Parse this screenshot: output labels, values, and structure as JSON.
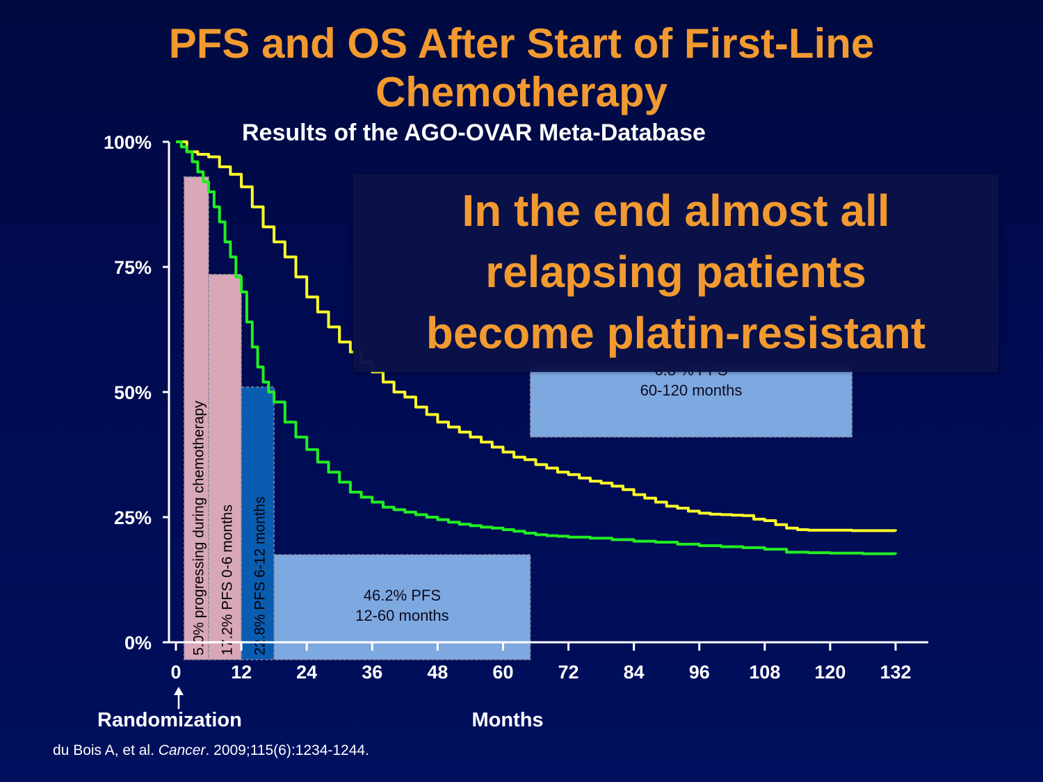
{
  "slide": {
    "title_line1": "PFS and OS After Start of First-Line",
    "title_line2": "Chemotherapy",
    "subtitle": "Results of the AGO-OVAR Meta-Database",
    "callout": [
      "In the end almost all",
      "relapsing patients",
      "become platin-resistant"
    ],
    "citation_authors": "du Bois A, et al. ",
    "citation_journal": "Cancer",
    "citation_rest": ". 2009;115(6):1234-1244."
  },
  "colors": {
    "os_curve": "#ffff2a",
    "pfs_curve": "#22ee22",
    "pink_bar": "#d8a8b8",
    "dark_blue_bar": "#0a5cb0",
    "light_blue_bar": "#7ea8e0",
    "title": "#f29a30"
  },
  "chart_data": {
    "type": "line",
    "xlabel": "Months",
    "x_annotation": "Randomization",
    "xlim": [
      0,
      132
    ],
    "ylim": [
      0,
      100
    ],
    "x_ticks": [
      0,
      12,
      24,
      36,
      48,
      60,
      72,
      84,
      96,
      108,
      120,
      132
    ],
    "y_ticks": [
      {
        "value": 0,
        "label": "0%"
      },
      {
        "value": 25,
        "label": "25%"
      },
      {
        "value": 50,
        "label": "50%"
      },
      {
        "value": 75,
        "label": "75%"
      },
      {
        "value": 100,
        "label": "100%"
      }
    ],
    "series": [
      {
        "key": "os",
        "points": [
          [
            0,
            100
          ],
          [
            2,
            98
          ],
          [
            4,
            97.5
          ],
          [
            6,
            97
          ],
          [
            8,
            95
          ],
          [
            10,
            93.5
          ],
          [
            12,
            91
          ],
          [
            14,
            87
          ],
          [
            16,
            83
          ],
          [
            18,
            80
          ],
          [
            20,
            77
          ],
          [
            22,
            73
          ],
          [
            24,
            69
          ],
          [
            26,
            66
          ],
          [
            28,
            63
          ],
          [
            30,
            60
          ],
          [
            32,
            58
          ],
          [
            34,
            56
          ],
          [
            36,
            54
          ],
          [
            38,
            52
          ],
          [
            40,
            50
          ],
          [
            42,
            49
          ],
          [
            44,
            47
          ],
          [
            46,
            45.5
          ],
          [
            48,
            44
          ],
          [
            50,
            43
          ],
          [
            52,
            42
          ],
          [
            54,
            41
          ],
          [
            56,
            40
          ],
          [
            58,
            39
          ],
          [
            60,
            38
          ],
          [
            62,
            37
          ],
          [
            64,
            36.5
          ],
          [
            66,
            35.5
          ],
          [
            68,
            34.8
          ],
          [
            70,
            34
          ],
          [
            72,
            33.5
          ],
          [
            74,
            32.8
          ],
          [
            76,
            32.2
          ],
          [
            78,
            31.8
          ],
          [
            80,
            31.2
          ],
          [
            82,
            30.5
          ],
          [
            84,
            29.5
          ],
          [
            86,
            28.8
          ],
          [
            88,
            28
          ],
          [
            90,
            27.2
          ],
          [
            92,
            26.8
          ],
          [
            94,
            26.2
          ],
          [
            96,
            25.8
          ],
          [
            98,
            25.6
          ],
          [
            100,
            25.5
          ],
          [
            102,
            25.4
          ],
          [
            104,
            25.3
          ],
          [
            106,
            24.6
          ],
          [
            108,
            24.3
          ],
          [
            110,
            23.5
          ],
          [
            112,
            22.8
          ],
          [
            114,
            22.5
          ],
          [
            116,
            22.4
          ],
          [
            120,
            22.4
          ],
          [
            124,
            22.3
          ],
          [
            128,
            22.3
          ],
          [
            132,
            22.2
          ]
        ]
      },
      {
        "key": "pfs",
        "points": [
          [
            0,
            100
          ],
          [
            1,
            99
          ],
          [
            2,
            98
          ],
          [
            3,
            96
          ],
          [
            4,
            94
          ],
          [
            5,
            92
          ],
          [
            6,
            90
          ],
          [
            7,
            87
          ],
          [
            8,
            84
          ],
          [
            9,
            80
          ],
          [
            10,
            77
          ],
          [
            11,
            73
          ],
          [
            12,
            70
          ],
          [
            13,
            64
          ],
          [
            14,
            59
          ],
          [
            15,
            55
          ],
          [
            16,
            52
          ],
          [
            17,
            50
          ],
          [
            18,
            48
          ],
          [
            20,
            44
          ],
          [
            22,
            41
          ],
          [
            24,
            38.5
          ],
          [
            26,
            36
          ],
          [
            28,
            34
          ],
          [
            30,
            32
          ],
          [
            32,
            30
          ],
          [
            34,
            29
          ],
          [
            36,
            28
          ],
          [
            38,
            27
          ],
          [
            40,
            26.5
          ],
          [
            42,
            26
          ],
          [
            44,
            25.5
          ],
          [
            46,
            25
          ],
          [
            48,
            24.5
          ],
          [
            50,
            24
          ],
          [
            52,
            23.6
          ],
          [
            54,
            23.3
          ],
          [
            56,
            23
          ],
          [
            58,
            22.8
          ],
          [
            60,
            22.5
          ],
          [
            62,
            22.2
          ],
          [
            64,
            21.8
          ],
          [
            66,
            21.5
          ],
          [
            68,
            21.3
          ],
          [
            70,
            21.2
          ],
          [
            72,
            21
          ],
          [
            76,
            20.8
          ],
          [
            80,
            20.5
          ],
          [
            84,
            20.2
          ],
          [
            88,
            20
          ],
          [
            92,
            19.6
          ],
          [
            96,
            19.3
          ],
          [
            100,
            19.1
          ],
          [
            104,
            18.9
          ],
          [
            108,
            18.6
          ],
          [
            112,
            18
          ],
          [
            116,
            17.9
          ],
          [
            120,
            17.8
          ],
          [
            126,
            17.7
          ],
          [
            132,
            17.6
          ]
        ]
      }
    ],
    "bars": [
      {
        "x0": 1.5,
        "x1": 6,
        "value": 93,
        "style": "pink",
        "label": "5.0%  progressing during chemotherapy",
        "orientation": "vertical"
      },
      {
        "x0": 6,
        "x1": 12,
        "value": 73.5,
        "style": "pink",
        "label": "17.2%  PFS 0-6 months",
        "orientation": "vertical"
      },
      {
        "x0": 12,
        "x1": 18,
        "value": 51,
        "style": "dark_blue",
        "label": "22.8%  PFS 6-12 months",
        "orientation": "vertical"
      },
      {
        "x0": 18,
        "x1": 65,
        "value": 17.5,
        "style": "light_blue",
        "label_lines": [
          "46.2%  PFS",
          "12-60 months"
        ],
        "orientation": "horizontal"
      },
      {
        "x0": 65,
        "x1": 124,
        "y0": 41,
        "value": 55,
        "style": "light_blue",
        "label_lines": [
          "6.8 % PFS",
          "60-120 months"
        ],
        "orientation": "horizontal"
      }
    ]
  }
}
